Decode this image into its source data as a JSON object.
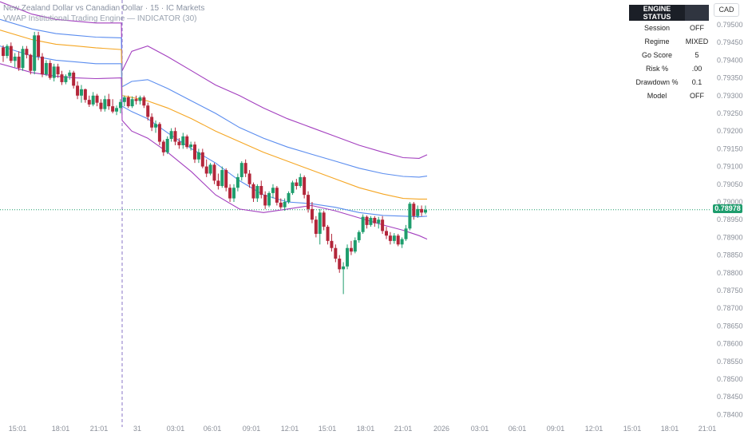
{
  "header": {
    "symbol_line": "New Zealand Dollar vs Canadian Dollar · 15 · IC Markets",
    "indicator_line": "VWAP Institutional Trading Engine — INDICATOR (30)"
  },
  "currency_button": "CAD",
  "engine_status": {
    "title": "ENGINE STATUS",
    "rows": [
      {
        "label": "Session",
        "value": "OFF"
      },
      {
        "label": "Regime",
        "value": "MIXED"
      },
      {
        "label": "Go Score",
        "value": "5"
      },
      {
        "label": "Risk %",
        "value": ".00"
      },
      {
        "label": "Drawdown %",
        "value": "0.1"
      },
      {
        "label": "Model",
        "value": "OFF"
      }
    ]
  },
  "last_price": "0.78978",
  "colors": {
    "up": "#26a69a",
    "down": "#ef5350",
    "candle_up_fill": "#1e9d6d",
    "candle_down_fill": "#b3263a",
    "vwap": "#f5a623",
    "band_inner": "#5b8def",
    "band_outer": "#a33fbf",
    "last_price_line": "#1e9d6d",
    "session_divider": "#8a76c7"
  },
  "chart_data": {
    "type": "candlestick",
    "y_ticks": [
      "0.79500",
      "0.79450",
      "0.79400",
      "0.79350",
      "0.79300",
      "0.79250",
      "0.79200",
      "0.79150",
      "0.79100",
      "0.79050",
      "0.79000",
      "0.78950",
      "0.78900",
      "0.78850",
      "0.78800",
      "0.78750",
      "0.78700",
      "0.78650",
      "0.78600",
      "0.78550",
      "0.78500",
      "0.78450",
      "0.78400"
    ],
    "x_ticks": [
      "15:01",
      "18:01",
      "21:01",
      "31",
      "03:01",
      "06:01",
      "09:01",
      "12:01",
      "15:01",
      "18:01",
      "21:01",
      "2026",
      "03:01",
      "06:01",
      "09:01",
      "12:01",
      "15:01",
      "18:01",
      "21:01"
    ],
    "y_range": [
      0.7837,
      0.7952
    ],
    "last_price": 0.78978,
    "candles": [
      [
        0.79436,
        0.79442,
        0.79395,
        0.79412
      ],
      [
        0.79412,
        0.79445,
        0.79405,
        0.7944
      ],
      [
        0.7944,
        0.7945,
        0.79392,
        0.79398
      ],
      [
        0.79398,
        0.7942,
        0.7938,
        0.7941
      ],
      [
        0.7941,
        0.79425,
        0.7937,
        0.79378
      ],
      [
        0.79378,
        0.7944,
        0.7937,
        0.79432
      ],
      [
        0.79432,
        0.7944,
        0.79405,
        0.79415
      ],
      [
        0.79415,
        0.79418,
        0.7936,
        0.7937
      ],
      [
        0.7937,
        0.7948,
        0.7936,
        0.7947
      ],
      [
        0.7947,
        0.7948,
        0.794,
        0.7941
      ],
      [
        0.7941,
        0.7942,
        0.79352,
        0.7936
      ],
      [
        0.7936,
        0.794,
        0.79355,
        0.79392
      ],
      [
        0.79392,
        0.794,
        0.79345,
        0.7935
      ],
      [
        0.7935,
        0.7939,
        0.7934,
        0.79382
      ],
      [
        0.79382,
        0.7939,
        0.7935,
        0.7936
      ],
      [
        0.7936,
        0.7937,
        0.7933,
        0.79338
      ],
      [
        0.79338,
        0.7936,
        0.79332,
        0.79355
      ],
      [
        0.79355,
        0.79372,
        0.79345,
        0.79365
      ],
      [
        0.79365,
        0.7937,
        0.7932,
        0.79328
      ],
      [
        0.79328,
        0.7934,
        0.7929,
        0.793
      ],
      [
        0.793,
        0.7933,
        0.7928,
        0.79318
      ],
      [
        0.79318,
        0.7932,
        0.7928,
        0.79288
      ],
      [
        0.79288,
        0.793,
        0.79268,
        0.79275
      ],
      [
        0.79275,
        0.7931,
        0.7927,
        0.793
      ],
      [
        0.793,
        0.79305,
        0.7927,
        0.7928
      ],
      [
        0.7928,
        0.7929,
        0.79255,
        0.79262
      ],
      [
        0.79262,
        0.793,
        0.79255,
        0.7929
      ],
      [
        0.7929,
        0.79305,
        0.7926,
        0.7927
      ],
      [
        0.7927,
        0.7929,
        0.7925,
        0.79255
      ],
      [
        0.79255,
        0.79272,
        0.79245,
        0.79265
      ],
      [
        0.79265,
        0.7929,
        0.7925,
        0.79282
      ],
      [
        0.79282,
        0.793,
        0.7927,
        0.79295
      ],
      [
        0.79295,
        0.793,
        0.79265,
        0.7927
      ],
      [
        0.7927,
        0.79298,
        0.79265,
        0.7929
      ],
      [
        0.7929,
        0.793,
        0.79275,
        0.79285
      ],
      [
        0.79285,
        0.793,
        0.79275,
        0.79295
      ],
      [
        0.79295,
        0.793,
        0.79265,
        0.79272
      ],
      [
        0.79272,
        0.7928,
        0.7923,
        0.7924
      ],
      [
        0.7924,
        0.7925,
        0.792,
        0.7921
      ],
      [
        0.7921,
        0.7923,
        0.79195,
        0.7922
      ],
      [
        0.7922,
        0.79225,
        0.7916,
        0.7917
      ],
      [
        0.7917,
        0.79175,
        0.7913,
        0.7914
      ],
      [
        0.7914,
        0.79185,
        0.79135,
        0.79178
      ],
      [
        0.79178,
        0.79208,
        0.7917,
        0.792
      ],
      [
        0.792,
        0.7921,
        0.7916,
        0.7917
      ],
      [
        0.7917,
        0.7918,
        0.7915,
        0.7916
      ],
      [
        0.7916,
        0.79195,
        0.7915,
        0.79185
      ],
      [
        0.79185,
        0.7919,
        0.7915,
        0.79155
      ],
      [
        0.79155,
        0.7917,
        0.79145,
        0.79162
      ],
      [
        0.79162,
        0.7917,
        0.7911,
        0.7912
      ],
      [
        0.7912,
        0.7915,
        0.7911,
        0.7914
      ],
      [
        0.7914,
        0.7915,
        0.79095,
        0.791
      ],
      [
        0.791,
        0.7912,
        0.7907,
        0.7908
      ],
      [
        0.7908,
        0.7911,
        0.79075,
        0.79105
      ],
      [
        0.79105,
        0.7911,
        0.7905,
        0.7906
      ],
      [
        0.7906,
        0.7908,
        0.79035,
        0.79045
      ],
      [
        0.79045,
        0.791,
        0.7904,
        0.7909
      ],
      [
        0.7909,
        0.79095,
        0.7903,
        0.7904
      ],
      [
        0.7904,
        0.7905,
        0.79,
        0.7901
      ],
      [
        0.7901,
        0.7905,
        0.79,
        0.7904
      ],
      [
        0.7904,
        0.7908,
        0.7903,
        0.7907
      ],
      [
        0.7907,
        0.79115,
        0.7906,
        0.7911
      ],
      [
        0.7911,
        0.7912,
        0.7907,
        0.7908
      ],
      [
        0.7908,
        0.7909,
        0.7904,
        0.7905
      ],
      [
        0.7905,
        0.79055,
        0.79,
        0.7901
      ],
      [
        0.7901,
        0.7905,
        0.79,
        0.79045
      ],
      [
        0.79045,
        0.7906,
        0.7901,
        0.7902
      ],
      [
        0.7902,
        0.7903,
        0.7898,
        0.7899
      ],
      [
        0.7899,
        0.7903,
        0.78985,
        0.79025
      ],
      [
        0.79025,
        0.7905,
        0.7901,
        0.7904
      ],
      [
        0.7904,
        0.79045,
        0.7899,
        0.78998
      ],
      [
        0.78998,
        0.7901,
        0.7898,
        0.78985
      ],
      [
        0.78985,
        0.7901,
        0.78975,
        0.79
      ],
      [
        0.79,
        0.7903,
        0.78995,
        0.79025
      ],
      [
        0.79025,
        0.7906,
        0.7902,
        0.79055
      ],
      [
        0.79055,
        0.79065,
        0.79035,
        0.79045
      ],
      [
        0.79045,
        0.7908,
        0.7904,
        0.7907
      ],
      [
        0.7907,
        0.79075,
        0.7901,
        0.7902
      ],
      [
        0.7902,
        0.7903,
        0.7897,
        0.7898
      ],
      [
        0.7898,
        0.79,
        0.7894,
        0.7895
      ],
      [
        0.7895,
        0.7896,
        0.789,
        0.7891
      ],
      [
        0.7891,
        0.7898,
        0.7888,
        0.7897
      ],
      [
        0.7897,
        0.78975,
        0.7892,
        0.7893
      ],
      [
        0.7893,
        0.78935,
        0.7888,
        0.7889
      ],
      [
        0.7889,
        0.7891,
        0.7886,
        0.7887
      ],
      [
        0.7887,
        0.7888,
        0.7883,
        0.7884
      ],
      [
        0.7884,
        0.7885,
        0.788,
        0.7881
      ],
      [
        0.7881,
        0.7883,
        0.7874,
        0.78818
      ],
      [
        0.78818,
        0.7888,
        0.7881,
        0.7887
      ],
      [
        0.7887,
        0.7889,
        0.7885,
        0.7886
      ],
      [
        0.7886,
        0.789,
        0.78855,
        0.78892
      ],
      [
        0.78892,
        0.7892,
        0.78885,
        0.78915
      ],
      [
        0.78915,
        0.78965,
        0.7891,
        0.78958
      ],
      [
        0.78958,
        0.78962,
        0.78925,
        0.78935
      ],
      [
        0.78935,
        0.7896,
        0.7893,
        0.78955
      ],
      [
        0.78955,
        0.7896,
        0.7893,
        0.7894
      ],
      [
        0.7894,
        0.78958,
        0.78925,
        0.7895
      ],
      [
        0.7895,
        0.7896,
        0.7891,
        0.78918
      ],
      [
        0.78918,
        0.7893,
        0.78895,
        0.78905
      ],
      [
        0.78905,
        0.78915,
        0.7888,
        0.7889
      ],
      [
        0.7889,
        0.78912,
        0.78882,
        0.78905
      ],
      [
        0.78905,
        0.7891,
        0.78875,
        0.7888
      ],
      [
        0.7888,
        0.789,
        0.7887,
        0.78895
      ],
      [
        0.78895,
        0.78935,
        0.7889,
        0.78925
      ],
      [
        0.78925,
        0.79,
        0.7892,
        0.78995
      ],
      [
        0.78995,
        0.79,
        0.7895,
        0.7896
      ],
      [
        0.7896,
        0.7899,
        0.78955,
        0.7898
      ],
      [
        0.7898,
        0.7899,
        0.7896,
        0.7897
      ],
      [
        0.7897,
        0.7899,
        0.78965,
        0.78978
      ]
    ],
    "bands": {
      "outer_upper": [
        [
          0,
          0.79565
        ],
        [
          40,
          0.7953
        ],
        [
          70,
          0.79515
        ],
        [
          95,
          0.7951
        ],
        [
          120,
          0.79505
        ],
        [
          152,
          0.79505
        ],
        [
          153,
          0.7937
        ],
        [
          165,
          0.79425
        ],
        [
          185,
          0.7944
        ],
        [
          210,
          0.7941
        ],
        [
          240,
          0.7937
        ],
        [
          270,
          0.7933
        ],
        [
          300,
          0.793
        ],
        [
          330,
          0.79265
        ],
        [
          360,
          0.79235
        ],
        [
          390,
          0.7921
        ],
        [
          420,
          0.79185
        ],
        [
          450,
          0.7916
        ],
        [
          480,
          0.7914
        ],
        [
          505,
          0.79125
        ],
        [
          525,
          0.79123
        ],
        [
          535,
          0.79133
        ]
      ],
      "inner_upper": [
        [
          0,
          0.79515
        ],
        [
          40,
          0.79488
        ],
        [
          70,
          0.79475
        ],
        [
          95,
          0.7947
        ],
        [
          120,
          0.79465
        ],
        [
          152,
          0.79463
        ],
        [
          153,
          0.79325
        ],
        [
          165,
          0.7934
        ],
        [
          185,
          0.79345
        ],
        [
          210,
          0.7932
        ],
        [
          240,
          0.79285
        ],
        [
          270,
          0.7925
        ],
        [
          300,
          0.7921
        ],
        [
          330,
          0.7918
        ],
        [
          360,
          0.79155
        ],
        [
          390,
          0.79135
        ],
        [
          420,
          0.79115
        ],
        [
          450,
          0.79095
        ],
        [
          480,
          0.7908
        ],
        [
          505,
          0.79072
        ],
        [
          525,
          0.7907
        ],
        [
          535,
          0.79073
        ]
      ],
      "vwap": [
        [
          0,
          0.79485
        ],
        [
          40,
          0.79458
        ],
        [
          70,
          0.79445
        ],
        [
          95,
          0.7944
        ],
        [
          120,
          0.79435
        ],
        [
          152,
          0.7943
        ],
        [
          153,
          0.793
        ],
        [
          165,
          0.79295
        ],
        [
          185,
          0.79285
        ],
        [
          210,
          0.79265
        ],
        [
          240,
          0.79235
        ],
        [
          270,
          0.792
        ],
        [
          300,
          0.7917
        ],
        [
          330,
          0.7914
        ],
        [
          360,
          0.79115
        ],
        [
          390,
          0.7909
        ],
        [
          420,
          0.79065
        ],
        [
          450,
          0.7904
        ],
        [
          480,
          0.79022
        ],
        [
          505,
          0.7901
        ],
        [
          525,
          0.79008
        ],
        [
          535,
          0.79008
        ]
      ],
      "inner_lower": [
        [
          0,
          0.7944
        ],
        [
          40,
          0.79412
        ],
        [
          70,
          0.794
        ],
        [
          95,
          0.79395
        ],
        [
          120,
          0.7939
        ],
        [
          152,
          0.7939
        ],
        [
          153,
          0.7927
        ],
        [
          165,
          0.79255
        ],
        [
          185,
          0.79235
        ],
        [
          210,
          0.79195
        ],
        [
          240,
          0.7915
        ],
        [
          270,
          0.7911
        ],
        [
          300,
          0.7906
        ],
        [
          330,
          0.7902
        ],
        [
          360,
          0.79
        ],
        [
          390,
          0.78995
        ],
        [
          420,
          0.78985
        ],
        [
          450,
          0.7897
        ],
        [
          480,
          0.78962
        ],
        [
          505,
          0.7896
        ],
        [
          525,
          0.78958
        ],
        [
          535,
          0.7896
        ]
      ],
      "outer_lower": [
        [
          0,
          0.7939
        ],
        [
          40,
          0.79365
        ],
        [
          70,
          0.79355
        ],
        [
          95,
          0.7935
        ],
        [
          120,
          0.79348
        ],
        [
          152,
          0.7935
        ],
        [
          153,
          0.7923
        ],
        [
          165,
          0.792
        ],
        [
          185,
          0.7918
        ],
        [
          210,
          0.7914
        ],
        [
          240,
          0.79085
        ],
        [
          270,
          0.7902
        ],
        [
          300,
          0.7898
        ],
        [
          330,
          0.7897
        ],
        [
          360,
          0.7898
        ],
        [
          390,
          0.7899
        ],
        [
          420,
          0.78975
        ],
        [
          450,
          0.78955
        ],
        [
          480,
          0.78935
        ],
        [
          505,
          0.7892
        ],
        [
          525,
          0.78905
        ],
        [
          535,
          0.78895
        ]
      ]
    }
  }
}
